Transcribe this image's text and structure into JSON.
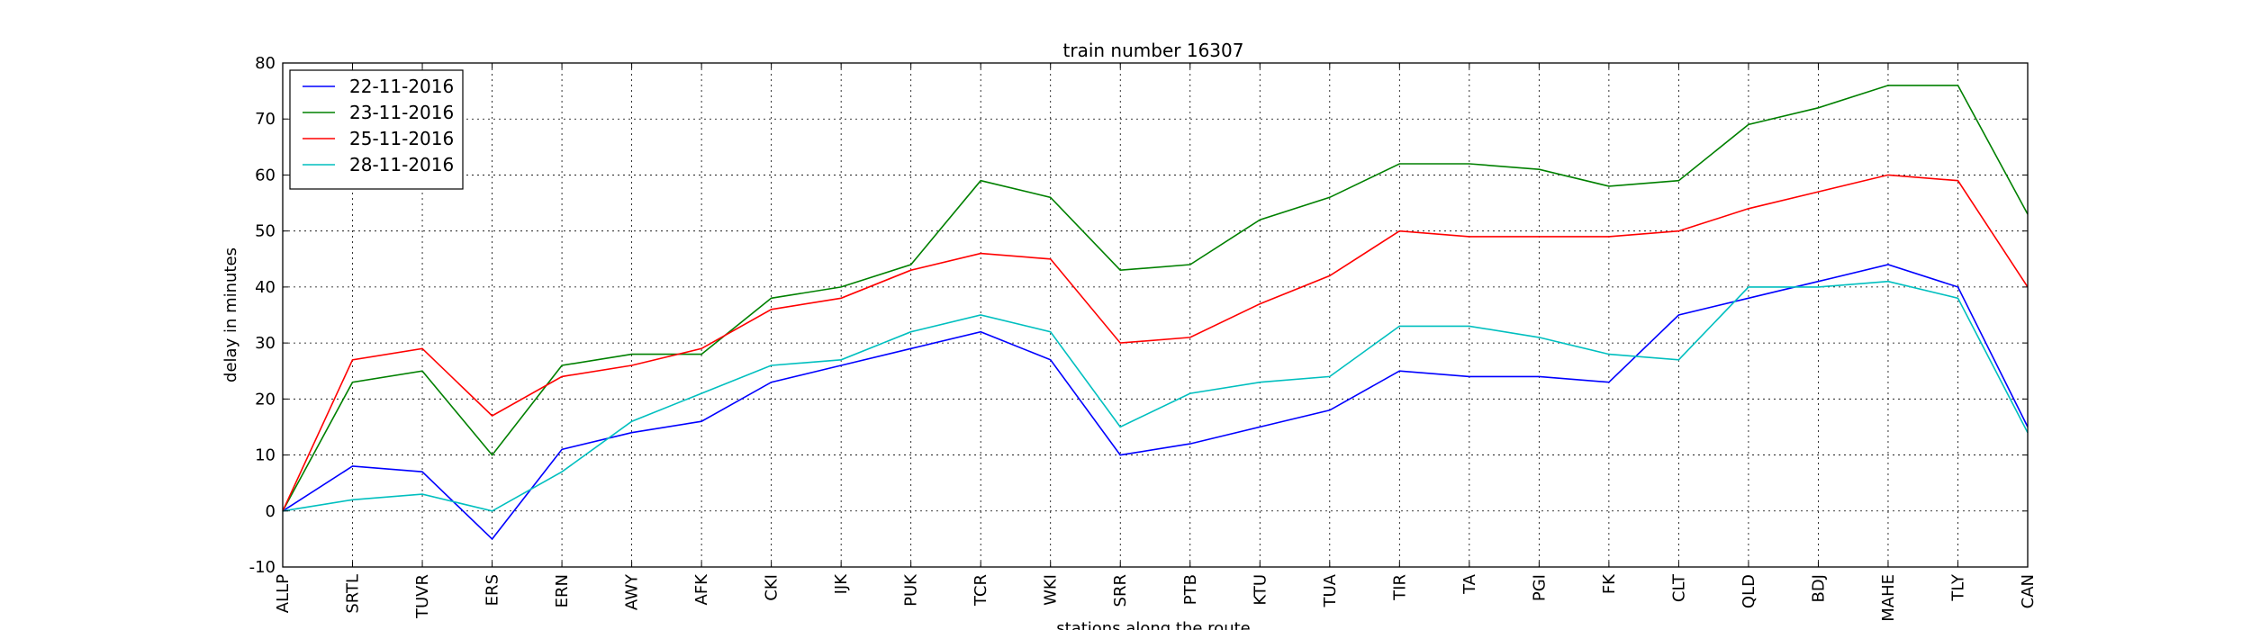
{
  "chart_data": {
    "type": "line",
    "title": "train number 16307",
    "xlabel": "stations along the route",
    "ylabel": "delay in minutes",
    "ylim": [
      -10,
      80
    ],
    "yticks": [
      -10,
      0,
      10,
      20,
      30,
      40,
      50,
      60,
      70,
      80
    ],
    "grid": true,
    "legend_position": "upper-left",
    "categories": [
      "ALLP",
      "SRTL",
      "TUVR",
      "ERS",
      "ERN",
      "AWY",
      "AFK",
      "CKI",
      "IJK",
      "PUK",
      "TCR",
      "WKI",
      "SRR",
      "PTB",
      "KTU",
      "TUA",
      "TIR",
      "TA",
      "PGI",
      "FK",
      "CLT",
      "QLD",
      "BDJ",
      "MAHE",
      "TLY",
      "CAN"
    ],
    "series": [
      {
        "name": "22-11-2016",
        "color": "#0000ff",
        "values": [
          0,
          8,
          7,
          -5,
          11,
          14,
          16,
          23,
          26,
          29,
          32,
          27,
          10,
          12,
          15,
          18,
          25,
          24,
          24,
          23,
          35,
          38,
          41,
          44,
          40,
          15
        ]
      },
      {
        "name": "23-11-2016",
        "color": "#008000",
        "values": [
          0,
          23,
          25,
          10,
          26,
          28,
          28,
          38,
          40,
          44,
          59,
          56,
          43,
          44,
          52,
          56,
          62,
          62,
          61,
          58,
          59,
          69,
          72,
          76,
          76,
          53
        ]
      },
      {
        "name": "25-11-2016",
        "color": "#ff0000",
        "values": [
          0,
          27,
          29,
          17,
          24,
          26,
          29,
          36,
          38,
          43,
          46,
          45,
          30,
          31,
          37,
          42,
          50,
          49,
          49,
          49,
          50,
          54,
          57,
          60,
          59,
          40
        ]
      },
      {
        "name": "28-11-2016",
        "color": "#00bfbf",
        "values": [
          0,
          2,
          3,
          0,
          7,
          16,
          21,
          26,
          27,
          32,
          35,
          32,
          15,
          21,
          23,
          24,
          33,
          33,
          31,
          28,
          27,
          40,
          40,
          41,
          38,
          14
        ]
      }
    ]
  }
}
